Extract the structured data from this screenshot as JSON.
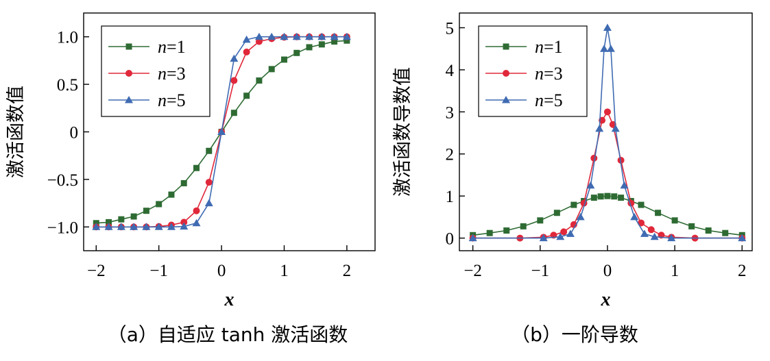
{
  "colors": {
    "n1": "#2e6b33",
    "n3": "#e0283a",
    "n5": "#3f6bb2"
  },
  "chart_data": [
    {
      "type": "line",
      "caption": "（a）自适应 tanh 激活函数",
      "xlabel": "x",
      "ylabel": "激活函数值",
      "xlim": [
        -2.2,
        2.45
      ],
      "ylim": [
        -1.25,
        1.25
      ],
      "xticks": [
        -2,
        -1,
        0,
        1,
        2
      ],
      "xtick_labels": [
        "−2",
        "−1",
        "0",
        "1",
        "2"
      ],
      "yticks": [
        -1.0,
        -0.5,
        0,
        0.5,
        1.0
      ],
      "ytick_labels": [
        "−1.0",
        "−0.5",
        "0",
        "0.5",
        "1.0"
      ],
      "legend": {
        "position": "top-left",
        "entries": [
          {
            "prefix": "n",
            "suffix": "=1"
          },
          {
            "prefix": "n",
            "suffix": "=3"
          },
          {
            "prefix": "n",
            "suffix": "=5"
          }
        ]
      },
      "series": [
        {
          "name": "n=1",
          "marker": "square",
          "x": [
            -2,
            -1.8,
            -1.6,
            -1.4,
            -1.2,
            -1.0,
            -0.8,
            -0.6,
            -0.4,
            -0.2,
            0,
            0.2,
            0.4,
            0.6,
            0.8,
            1.0,
            1.2,
            1.4,
            1.6,
            1.8,
            2.0
          ],
          "y": [
            -0.96,
            -0.95,
            -0.92,
            -0.89,
            -0.83,
            -0.76,
            -0.66,
            -0.54,
            -0.38,
            -0.2,
            0,
            0.2,
            0.38,
            0.54,
            0.66,
            0.76,
            0.83,
            0.89,
            0.92,
            0.95,
            0.96
          ]
        },
        {
          "name": "n=3",
          "marker": "circle",
          "x": [
            -2,
            -1.8,
            -1.6,
            -1.4,
            -1.2,
            -1.0,
            -0.8,
            -0.6,
            -0.4,
            -0.2,
            0,
            0.2,
            0.4,
            0.6,
            0.8,
            1.0,
            1.2,
            1.4,
            1.6,
            1.8,
            2.0
          ],
          "y": [
            -1.0,
            -1.0,
            -1.0,
            -1.0,
            -1.0,
            -0.995,
            -0.98,
            -0.95,
            -0.83,
            -0.53,
            0,
            0.54,
            0.84,
            0.95,
            0.98,
            0.995,
            1.0,
            1.0,
            1.0,
            1.0,
            1.0
          ]
        },
        {
          "name": "n=5",
          "marker": "triangle",
          "x": [
            -2,
            -1.8,
            -1.6,
            -1.4,
            -1.2,
            -1.0,
            -0.8,
            -0.6,
            -0.4,
            -0.2,
            0,
            0.2,
            0.4,
            0.6,
            0.8,
            1.0,
            1.2,
            1.4,
            1.6,
            1.8,
            2.0
          ],
          "y": [
            -1.0,
            -1.0,
            -1.0,
            -1.0,
            -1.0,
            -1.0,
            -1.0,
            -0.995,
            -0.96,
            -0.75,
            0,
            0.77,
            0.97,
            1.0,
            1.0,
            1.0,
            1.0,
            1.0,
            1.0,
            1.0,
            1.0
          ]
        }
      ]
    },
    {
      "type": "line",
      "caption": "（b）一阶导数",
      "xlabel": "x",
      "ylabel": "激活函数导数值",
      "xlim": [
        -2.2,
        2.15
      ],
      "ylim": [
        -0.3,
        5.35
      ],
      "xticks": [
        -2,
        -1,
        0,
        1,
        2
      ],
      "xtick_labels": [
        "−2",
        "−1",
        "0",
        "1",
        "2"
      ],
      "yticks": [
        0,
        1,
        2,
        3,
        4,
        5
      ],
      "ytick_labels": [
        "0",
        "1",
        "2",
        "3",
        "4",
        "5"
      ],
      "legend": {
        "position": "top-left",
        "entries": [
          {
            "prefix": "n",
            "suffix": "=1"
          },
          {
            "prefix": "n",
            "suffix": "=3"
          },
          {
            "prefix": "n",
            "suffix": "=5"
          }
        ]
      },
      "series": [
        {
          "name": "n=1",
          "marker": "square",
          "x": [
            -2,
            -1.75,
            -1.5,
            -1.25,
            -1.0,
            -0.75,
            -0.5,
            -0.35,
            -0.2,
            -0.1,
            0,
            0.1,
            0.2,
            0.35,
            0.5,
            0.75,
            1.0,
            1.25,
            1.5,
            1.75,
            2.0
          ],
          "y": [
            0.07,
            0.12,
            0.18,
            0.28,
            0.42,
            0.6,
            0.79,
            0.88,
            0.96,
            0.99,
            1.0,
            0.99,
            0.96,
            0.88,
            0.79,
            0.6,
            0.42,
            0.28,
            0.18,
            0.12,
            0.07
          ]
        },
        {
          "name": "n=3",
          "marker": "circle",
          "x": [
            -2,
            -1.3,
            -0.95,
            -0.8,
            -0.65,
            -0.5,
            -0.35,
            -0.2,
            -0.08,
            0,
            0.08,
            0.2,
            0.35,
            0.5,
            0.65,
            0.8,
            0.95,
            1.3,
            2.0
          ],
          "y": [
            0.0,
            0.0,
            0.02,
            0.07,
            0.15,
            0.32,
            0.83,
            1.9,
            2.8,
            3.0,
            2.7,
            1.85,
            0.83,
            0.36,
            0.2,
            0.07,
            0.02,
            0.0,
            0.0
          ]
        },
        {
          "name": "n=5",
          "marker": "triangle",
          "x": [
            -2,
            -0.95,
            -0.7,
            -0.55,
            -0.4,
            -0.25,
            -0.12,
            -0.05,
            0,
            0.05,
            0.12,
            0.25,
            0.4,
            0.55,
            0.7,
            0.95,
            2.0
          ],
          "y": [
            0.0,
            0.0,
            0.03,
            0.1,
            0.5,
            1.25,
            2.6,
            4.5,
            5.0,
            4.5,
            2.6,
            1.25,
            0.5,
            0.1,
            0.03,
            0.0,
            0.0
          ]
        }
      ]
    }
  ]
}
